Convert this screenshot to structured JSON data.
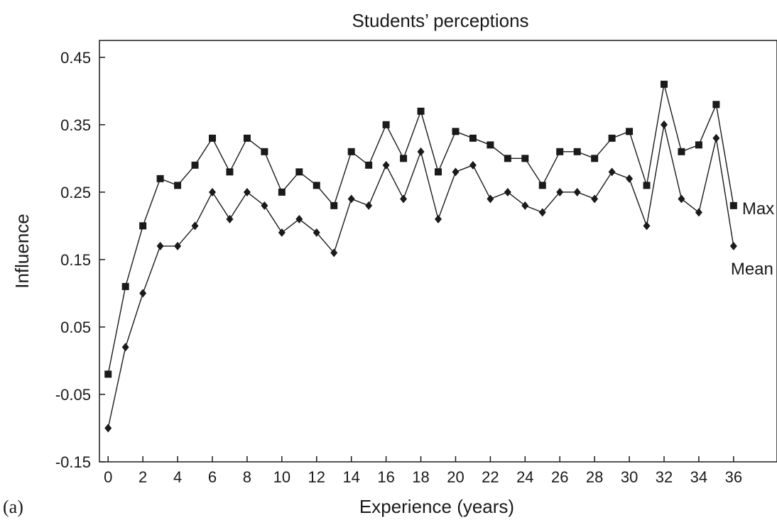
{
  "chart_data": {
    "type": "line",
    "title": "Students’ perceptions",
    "xlabel": "Experience (years)",
    "ylabel": "Influence",
    "panel_label": "(a)",
    "xlim": [
      -0.5,
      38.5
    ],
    "ylim": [
      -0.15,
      0.475
    ],
    "xticks": [
      0,
      2,
      4,
      6,
      8,
      10,
      12,
      14,
      16,
      18,
      20,
      22,
      24,
      26,
      28,
      30,
      32,
      34,
      36
    ],
    "yticks": [
      -0.15,
      -0.05,
      0.05,
      0.15,
      0.25,
      0.35,
      0.45
    ],
    "ytick_labels": [
      "-0.15",
      "-0.05",
      "0.05",
      "0.15",
      "0.25",
      "0.35",
      "0.45"
    ],
    "grid": false,
    "x": [
      0,
      1,
      2,
      3,
      4,
      5,
      6,
      7,
      8,
      9,
      10,
      11,
      12,
      13,
      14,
      15,
      16,
      17,
      18,
      19,
      20,
      21,
      22,
      23,
      24,
      25,
      26,
      27,
      28,
      29,
      30,
      31,
      32,
      33,
      34,
      35,
      36
    ],
    "series": [
      {
        "name": "Max",
        "marker": "square",
        "color": "#1a1a1a",
        "values": [
          -0.02,
          0.11,
          0.2,
          0.27,
          0.26,
          0.29,
          0.33,
          0.28,
          0.33,
          0.31,
          0.25,
          0.28,
          0.26,
          0.23,
          0.31,
          0.29,
          0.35,
          0.3,
          0.37,
          0.28,
          0.34,
          0.33,
          0.32,
          0.3,
          0.3,
          0.26,
          0.31,
          0.31,
          0.3,
          0.33,
          0.34,
          0.26,
          0.41,
          0.31,
          0.32,
          0.38,
          0.23
        ]
      },
      {
        "name": "Mean",
        "marker": "diamond",
        "color": "#1a1a1a",
        "values": [
          -0.1,
          0.02,
          0.1,
          0.17,
          0.17,
          0.2,
          0.25,
          0.21,
          0.25,
          0.23,
          0.19,
          0.21,
          0.19,
          0.16,
          0.24,
          0.23,
          0.29,
          0.24,
          0.31,
          0.21,
          0.28,
          0.29,
          0.24,
          0.25,
          0.23,
          0.22,
          0.25,
          0.25,
          0.24,
          0.28,
          0.27,
          0.2,
          0.35,
          0.24,
          0.22,
          0.33,
          0.17
        ]
      }
    ]
  }
}
